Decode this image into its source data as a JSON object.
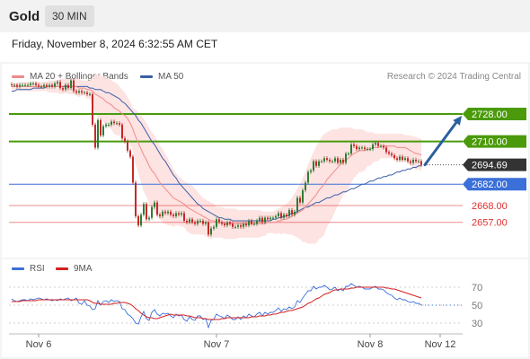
{
  "header": {
    "title": "Gold",
    "timeframe": "30 MIN"
  },
  "datetime": "Friday, November 8, 2024 6:32:55 AM CET",
  "legend": {
    "ma20_bb": "MA 20 + Bollinger Bands",
    "ma50": "MA 50",
    "credit": "Research © 2024 Trading Central",
    "rsi": "RSI",
    "ma9": "9MA"
  },
  "colors": {
    "ma20": "#f08a8a",
    "ma50": "#3a5ea8",
    "band": "#fde0df",
    "up": "#2e7d32",
    "down": "#c62828",
    "resistance": "#4a9a0a",
    "pivot": "#3b6fd9",
    "support": "#e03030",
    "current": "#333333",
    "rsi": "#3b6fd9",
    "rsi_ma": "#d42020",
    "arrow": "#2c5f9e"
  },
  "chart_data": [
    {
      "type": "candlestick",
      "x_labels": [
        "Nov 6",
        "Nov 7",
        "Nov 8",
        "Nov 12"
      ],
      "ylim": [
        2638,
        2738
      ],
      "levels": [
        {
          "value": 2728.0,
          "label": "2728.00",
          "kind": "resistance"
        },
        {
          "value": 2710.0,
          "label": "2710.00",
          "kind": "resistance"
        },
        {
          "value": 2694.69,
          "label": "2694.69",
          "kind": "current"
        },
        {
          "value": 2682.0,
          "label": "2682.00",
          "kind": "pivot"
        },
        {
          "value": 2668.0,
          "label": "2668.00",
          "kind": "support"
        },
        {
          "value": 2657.0,
          "label": "2657.00",
          "kind": "support"
        }
      ],
      "close": [
        2747,
        2747,
        2746,
        2747,
        2747,
        2747,
        2747,
        2748,
        2748,
        2747,
        2746,
        2746,
        2747,
        2746,
        2747,
        2746,
        2748,
        2749,
        2745,
        2744,
        2747,
        2745,
        2750,
        2743,
        2742,
        2743,
        2742,
        2742,
        2741,
        2741,
        2721,
        2706,
        2724,
        2714,
        2720,
        2721,
        2721,
        2723,
        2722,
        2722,
        2721,
        2712,
        2710,
        2704,
        2700,
        2683,
        2661,
        2655,
        2662,
        2669,
        2659,
        2660,
        2667,
        2670,
        2662,
        2661,
        2664,
        2663,
        2664,
        2662,
        2661,
        2663,
        2662,
        2663,
        2658,
        2657,
        2659,
        2657,
        2656,
        2658,
        2658,
        2656,
        2657,
        2649,
        2653,
        2654,
        2659,
        2657,
        2656,
        2655,
        2657,
        2656,
        2654,
        2654,
        2655,
        2654,
        2656,
        2655,
        2658,
        2656,
        2656,
        2658,
        2660,
        2657,
        2660,
        2659,
        2660,
        2660,
        2661,
        2663,
        2660,
        2662,
        2661,
        2665,
        2662,
        2664,
        2673,
        2670,
        2678,
        2683,
        2690,
        2691,
        2697,
        2694,
        2697,
        2697,
        2699,
        2698,
        2697,
        2697,
        2699,
        2696,
        2698,
        2696,
        2702,
        2702,
        2708,
        2707,
        2705,
        2706,
        2706,
        2705,
        2705,
        2705,
        2708,
        2709,
        2707,
        2707,
        2706,
        2703,
        2702,
        2701,
        2699,
        2698,
        2700,
        2698,
        2699,
        2697,
        2696,
        2698,
        2697,
        2697,
        2694.69
      ],
      "ma20": [
        2746,
        2746,
        2746,
        2746,
        2746,
        2746,
        2746,
        2746,
        2746,
        2746,
        2746,
        2746,
        2746,
        2746,
        2746,
        2746,
        2746,
        2746,
        2746,
        2746,
        2747,
        2746,
        2746,
        2746,
        2746,
        2745,
        2745,
        2745,
        2744,
        2744,
        2743,
        2741,
        2740,
        2739,
        2738,
        2736,
        2735,
        2734,
        2732,
        2731,
        2730,
        2728,
        2727,
        2725,
        2722,
        2718,
        2713,
        2709,
        2705,
        2701,
        2698,
        2694,
        2691,
        2689,
        2686,
        2683,
        2681,
        2679,
        2677,
        2675,
        2673,
        2672,
        2671,
        2670,
        2669,
        2667,
        2666,
        2665,
        2664,
        2663,
        2662,
        2661,
        2660,
        2659,
        2658,
        2658,
        2657,
        2657,
        2657,
        2656,
        2656,
        2656,
        2656,
        2656,
        2656,
        2656,
        2656,
        2656,
        2656,
        2656,
        2656,
        2656,
        2656,
        2656,
        2656,
        2657,
        2657,
        2657,
        2657,
        2658,
        2658,
        2659,
        2659,
        2660,
        2661,
        2662,
        2663,
        2664,
        2665,
        2667,
        2669,
        2671,
        2673,
        2675,
        2678,
        2680,
        2682,
        2685,
        2687,
        2689,
        2691,
        2693,
        2695,
        2697,
        2698,
        2699,
        2701,
        2702,
        2703,
        2704,
        2704,
        2704,
        2705,
        2705,
        2706,
        2706,
        2706,
        2707,
        2707,
        2707,
        2707,
        2707,
        2707,
        2706,
        2706,
        2706,
        2706,
        2705,
        2704,
        2703,
        2702,
        2702,
        2701
      ],
      "bb_upper": [
        2748,
        2748,
        2748,
        2749,
        2749,
        2749,
        2749,
        2749,
        2749,
        2749,
        2749,
        2749,
        2749,
        2749,
        2750,
        2750,
        2750,
        2750,
        2751,
        2751,
        2751,
        2751,
        2751,
        2751,
        2751,
        2751,
        2750,
        2750,
        2750,
        2750,
        2752,
        2754,
        2754,
        2753,
        2753,
        2752,
        2751,
        2750,
        2749,
        2748,
        2746,
        2744,
        2742,
        2739,
        2736,
        2732,
        2731,
        2729,
        2727,
        2725,
        2722,
        2719,
        2716,
        2714,
        2711,
        2707,
        2705,
        2702,
        2699,
        2695,
        2692,
        2689,
        2687,
        2686,
        2684,
        2683,
        2682,
        2681,
        2679,
        2677,
        2675,
        2673,
        2672,
        2671,
        2670,
        2669,
        2667,
        2667,
        2667,
        2666,
        2666,
        2666,
        2666,
        2666,
        2665,
        2665,
        2665,
        2665,
        2665,
        2665,
        2665,
        2665,
        2665,
        2664,
        2664,
        2664,
        2664,
        2664,
        2665,
        2666,
        2667,
        2668,
        2669,
        2671,
        2673,
        2676,
        2679,
        2682,
        2686,
        2690,
        2695,
        2699,
        2703,
        2707,
        2710,
        2713,
        2715,
        2716,
        2717,
        2718,
        2718,
        2718,
        2719,
        2719,
        2719,
        2719,
        2719,
        2718,
        2718,
        2718,
        2718,
        2717,
        2716,
        2716,
        2716,
        2715,
        2715,
        2715,
        2715,
        2715,
        2715,
        2715,
        2715,
        2715,
        2715,
        2715,
        2714,
        2714,
        2714,
        2713,
        2713,
        2712,
        2712
      ],
      "bb_lower": [
        2744,
        2744,
        2744,
        2743,
        2743,
        2743,
        2743,
        2743,
        2743,
        2743,
        2743,
        2743,
        2743,
        2743,
        2742,
        2742,
        2742,
        2742,
        2741,
        2741,
        2742,
        2741,
        2741,
        2741,
        2740,
        2739,
        2740,
        2740,
        2738,
        2738,
        2734,
        2728,
        2726,
        2725,
        2723,
        2720,
        2719,
        2718,
        2715,
        2714,
        2714,
        2712,
        2712,
        2711,
        2708,
        2704,
        2695,
        2689,
        2683,
        2677,
        2674,
        2669,
        2666,
        2664,
        2661,
        2659,
        2657,
        2656,
        2655,
        2655,
        2654,
        2655,
        2655,
        2654,
        2654,
        2651,
        2650,
        2649,
        2649,
        2649,
        2649,
        2649,
        2648,
        2647,
        2646,
        2647,
        2647,
        2647,
        2647,
        2646,
        2646,
        2646,
        2646,
        2646,
        2647,
        2647,
        2647,
        2647,
        2647,
        2647,
        2647,
        2647,
        2647,
        2648,
        2648,
        2650,
        2650,
        2650,
        2649,
        2650,
        2649,
        2650,
        2649,
        2649,
        2649,
        2648,
        2647,
        2646,
        2644,
        2644,
        2643,
        2643,
        2643,
        2643,
        2646,
        2647,
        2649,
        2654,
        2657,
        2660,
        2664,
        2668,
        2671,
        2675,
        2677,
        2679,
        2683,
        2686,
        2688,
        2690,
        2690,
        2691,
        2694,
        2694,
        2696,
        2697,
        2697,
        2699,
        2699,
        2699,
        2699,
        2699,
        2699,
        2697,
        2697,
        2697,
        2698,
        2696,
        2694,
        2693,
        2691,
        2692,
        2690
      ],
      "ma50": [
        2743,
        2743,
        2744,
        2744,
        2744,
        2744,
        2744,
        2744,
        2745,
        2745,
        2745,
        2745,
        2745,
        2746,
        2746,
        2746,
        2746,
        2746,
        2746,
        2746,
        2746,
        2746,
        2746,
        2746,
        2746,
        2746,
        2746,
        2746,
        2746,
        2745,
        2745,
        2744,
        2744,
        2744,
        2743,
        2742,
        2742,
        2741,
        2740,
        2739,
        2738,
        2736,
        2735,
        2733,
        2731,
        2729,
        2727,
        2724,
        2722,
        2719,
        2716,
        2713,
        2710,
        2708,
        2705,
        2702,
        2699,
        2697,
        2694,
        2691,
        2688,
        2686,
        2683,
        2681,
        2679,
        2677,
        2675,
        2673,
        2671,
        2669,
        2668,
        2666,
        2665,
        2664,
        2663,
        2662,
        2661,
        2660,
        2660,
        2659,
        2659,
        2659,
        2658,
        2658,
        2658,
        2658,
        2658,
        2658,
        2658,
        2658,
        2658,
        2658,
        2658,
        2658,
        2658,
        2658,
        2658,
        2659,
        2659,
        2660,
        2660,
        2661,
        2661,
        2662,
        2663,
        2663,
        2664,
        2665,
        2666,
        2667,
        2667,
        2668,
        2669,
        2670,
        2670,
        2671,
        2672,
        2673,
        2673,
        2674,
        2675,
        2675,
        2676,
        2677,
        2677,
        2678,
        2679,
        2679,
        2680,
        2681,
        2682,
        2682,
        2683,
        2684,
        2684,
        2685,
        2686,
        2686,
        2687,
        2687,
        2688,
        2688,
        2689,
        2690,
        2690,
        2691,
        2691,
        2692,
        2692,
        2693,
        2693,
        2694,
        2694
      ],
      "projection": {
        "from": 2694.69,
        "to": 2728.0
      }
    },
    {
      "type": "line",
      "name": "RSI",
      "ylim": [
        20,
        80
      ],
      "y_ticks": [
        70,
        50,
        30
      ],
      "rsi": [
        57,
        55,
        54,
        55,
        56,
        56,
        55,
        57,
        56,
        57,
        58,
        57,
        56,
        57,
        56,
        55,
        56,
        55,
        57,
        56,
        57,
        58,
        55,
        56,
        58,
        52,
        51,
        55,
        50,
        49,
        45,
        46,
        55,
        50,
        54,
        55,
        53,
        56,
        54,
        55,
        54,
        46,
        45,
        40,
        38,
        35,
        30,
        29,
        37,
        43,
        35,
        33,
        42,
        45,
        40,
        38,
        41,
        40,
        41,
        38,
        36,
        40,
        38,
        39,
        34,
        32,
        37,
        34,
        33,
        38,
        38,
        34,
        35,
        25,
        33,
        34,
        40,
        38,
        37,
        35,
        39,
        37,
        34,
        34,
        37,
        34,
        38,
        36,
        40,
        38,
        37,
        40,
        42,
        38,
        42,
        40,
        42,
        42,
        44,
        47,
        43,
        46,
        45,
        48,
        46,
        48,
        55,
        53,
        58,
        62,
        66,
        66,
        71,
        68,
        70,
        70,
        72,
        70,
        67,
        68,
        70,
        66,
        68,
        66,
        71,
        71,
        74,
        72,
        70,
        71,
        70,
        68,
        68,
        68,
        70,
        71,
        68,
        68,
        67,
        64,
        62,
        61,
        58,
        56,
        58,
        56,
        56,
        54,
        53,
        54,
        52,
        52,
        50
      ],
      "ma9": [
        54,
        54,
        54,
        54,
        55,
        55,
        55,
        55,
        55,
        55,
        56,
        56,
        56,
        56,
        56,
        56,
        56,
        56,
        56,
        56,
        56,
        56,
        56,
        56,
        56,
        56,
        56,
        56,
        56,
        55,
        53,
        52,
        52,
        51,
        51,
        51,
        51,
        51,
        52,
        52,
        53,
        53,
        53,
        52,
        51,
        49,
        46,
        44,
        41,
        39,
        37,
        36,
        36,
        35,
        35,
        36,
        37,
        38,
        39,
        40,
        39,
        39,
        39,
        39,
        39,
        38,
        38,
        37,
        36,
        36,
        36,
        35,
        35,
        34,
        34,
        34,
        34,
        34,
        35,
        35,
        36,
        36,
        36,
        36,
        36,
        36,
        36,
        36,
        36,
        37,
        37,
        37,
        38,
        38,
        38,
        39,
        39,
        40,
        40,
        41,
        42,
        42,
        43,
        44,
        44,
        45,
        46,
        47,
        48,
        50,
        52,
        53,
        55,
        57,
        58,
        60,
        62,
        63,
        64,
        66,
        67,
        67,
        68,
        68,
        68,
        68,
        69,
        69,
        70,
        70,
        70,
        70,
        70,
        70,
        70,
        70,
        70,
        70,
        70,
        69,
        69,
        68,
        68,
        67,
        66,
        65,
        64,
        63,
        62,
        61,
        60,
        59,
        58
      ]
    }
  ]
}
